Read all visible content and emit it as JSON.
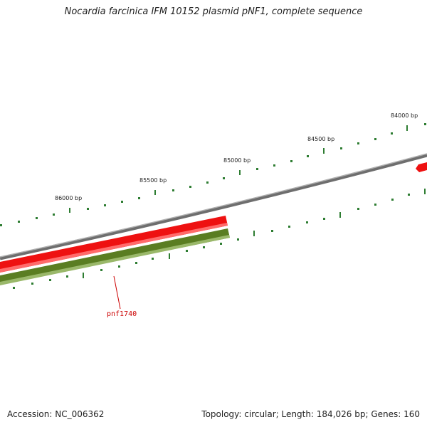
{
  "map": {
    "title": "Nocardia farcinica IFM 10152 plasmid pNF1, complete sequence",
    "ticks": [
      {
        "label": "84000 bp"
      },
      {
        "label": "84500 bp"
      },
      {
        "label": "85000 bp"
      },
      {
        "label": "85500 bp"
      },
      {
        "label": "86000 bp"
      }
    ],
    "gene_label": "pnf1740"
  },
  "footer": {
    "accession": "Accession: NC_006362",
    "summary": "Topology: circular; Length: 184,026 bp; Genes: 160"
  },
  "colors": {
    "backbone": "#7a7a7a",
    "forward_gene": "#ee1111",
    "reverse_gene": "#5a7d22",
    "tick": "#2e7d32",
    "gene_label": "#cc0000"
  }
}
